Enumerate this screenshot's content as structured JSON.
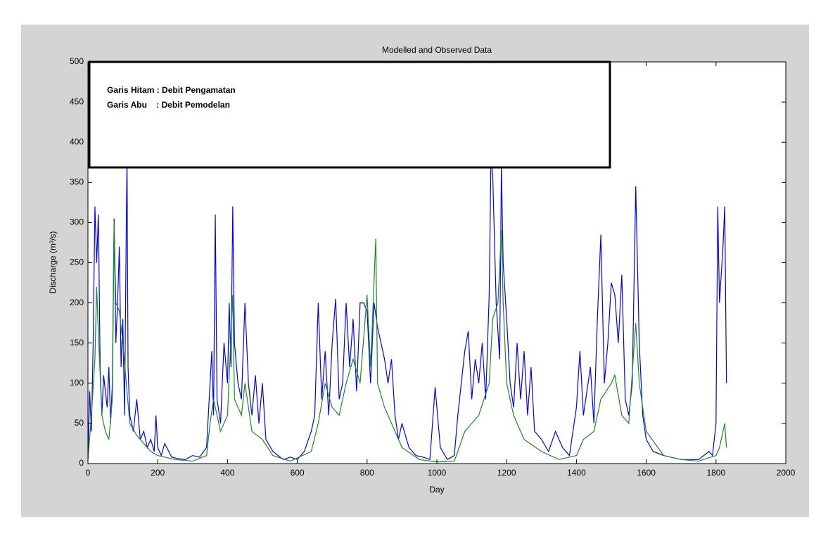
{
  "chart_data": {
    "type": "line",
    "title": "Modelled and Observed Data",
    "x_label": "Day",
    "y_label": "Discharge (m³/s)",
    "annotations": [
      "Garis Hitam : Debit Pengamatan",
      "Garis Abu    : Debit Pemodelan"
    ],
    "xlim": [
      0,
      2000
    ],
    "xticks": [
      0,
      200,
      400,
      600,
      800,
      1000,
      1200,
      1400,
      1600,
      1800,
      2000
    ],
    "ylim": [
      0,
      500
    ],
    "yticks": [
      0,
      50,
      100,
      150,
      200,
      250,
      300,
      350,
      400,
      450,
      500
    ],
    "series": [
      {
        "color": "#0000ff",
        "x": [
          0,
          5,
          10,
          15,
          20,
          25,
          30,
          35,
          40,
          45,
          50,
          55,
          60,
          65,
          70,
          75,
          80,
          85,
          90,
          95,
          100,
          105,
          110,
          112,
          115,
          120,
          130,
          140,
          150,
          160,
          170,
          180,
          190,
          195,
          200,
          210,
          220,
          240,
          260,
          280,
          300,
          320,
          340,
          350,
          355,
          360,
          365,
          370,
          380,
          390,
          400,
          405,
          410,
          415,
          420,
          430,
          440,
          450,
          460,
          470,
          480,
          490,
          500,
          510,
          530,
          560,
          580,
          600,
          620,
          640,
          650,
          660,
          670,
          680,
          690,
          700,
          710,
          720,
          730,
          740,
          750,
          760,
          770,
          780,
          790,
          800,
          810,
          820,
          830,
          840,
          850,
          860,
          870,
          880,
          890,
          900,
          920,
          940,
          960,
          980,
          995,
          1000,
          1010,
          1030,
          1050,
          1060,
          1070,
          1080,
          1090,
          1100,
          1110,
          1120,
          1130,
          1140,
          1150,
          1155,
          1160,
          1170,
          1180,
          1185,
          1190,
          1200,
          1210,
          1220,
          1230,
          1240,
          1250,
          1260,
          1270,
          1280,
          1300,
          1320,
          1340,
          1360,
          1380,
          1400,
          1410,
          1420,
          1440,
          1450,
          1460,
          1470,
          1480,
          1490,
          1500,
          1510,
          1520,
          1530,
          1540,
          1550,
          1560,
          1570,
          1580,
          1590,
          1600,
          1620,
          1650,
          1700,
          1750,
          1780,
          1790,
          1800,
          1805,
          1810,
          1820,
          1825,
          1830
        ],
        "values": [
          5,
          90,
          40,
          150,
          320,
          250,
          310,
          120,
          60,
          110,
          90,
          70,
          120,
          50,
          100,
          305,
          150,
          200,
          270,
          120,
          180,
          60,
          300,
          380,
          120,
          60,
          40,
          80,
          30,
          40,
          20,
          30,
          15,
          60,
          20,
          10,
          25,
          8,
          6,
          5,
          10,
          8,
          20,
          100,
          140,
          60,
          310,
          80,
          50,
          150,
          100,
          200,
          120,
          320,
          150,
          100,
          80,
          200,
          100,
          60,
          110,
          50,
          100,
          30,
          15,
          5,
          8,
          5,
          15,
          40,
          60,
          200,
          80,
          140,
          60,
          150,
          205,
          80,
          100,
          200,
          120,
          180,
          90,
          200,
          200,
          190,
          100,
          200,
          170,
          150,
          130,
          100,
          130,
          60,
          30,
          50,
          20,
          10,
          8,
          5,
          95,
          70,
          20,
          5,
          10,
          60,
          100,
          140,
          165,
          80,
          130,
          100,
          150,
          80,
          210,
          380,
          360,
          200,
          130,
          370,
          250,
          180,
          100,
          70,
          150,
          80,
          140,
          60,
          120,
          40,
          30,
          15,
          40,
          20,
          10,
          70,
          140,
          60,
          120,
          50,
          180,
          285,
          100,
          150,
          225,
          210,
          150,
          235,
          80,
          60,
          100,
          345,
          150,
          60,
          30,
          15,
          10,
          5,
          5,
          15,
          10,
          50,
          320,
          200,
          270,
          320,
          100
        ]
      },
      {
        "color": "#1a8c1a",
        "x": [
          0,
          10,
          20,
          25,
          30,
          40,
          50,
          60,
          70,
          75,
          80,
          90,
          100,
          110,
          120,
          140,
          160,
          180,
          200,
          250,
          300,
          340,
          350,
          360,
          370,
          380,
          400,
          415,
          420,
          440,
          450,
          470,
          500,
          530,
          580,
          640,
          660,
          680,
          700,
          720,
          740,
          760,
          780,
          800,
          810,
          825,
          830,
          850,
          870,
          900,
          950,
          1000,
          1050,
          1060,
          1080,
          1100,
          1120,
          1150,
          1160,
          1175,
          1185,
          1190,
          1200,
          1220,
          1250,
          1300,
          1350,
          1400,
          1420,
          1450,
          1470,
          1500,
          1510,
          1530,
          1550,
          1570,
          1580,
          1600,
          1650,
          1700,
          1750,
          1800,
          1810,
          1825,
          1830
        ],
        "values": [
          5,
          60,
          130,
          220,
          160,
          60,
          40,
          30,
          80,
          300,
          200,
          190,
          150,
          100,
          50,
          35,
          25,
          15,
          10,
          5,
          3,
          10,
          50,
          80,
          60,
          40,
          60,
          210,
          80,
          60,
          100,
          40,
          30,
          10,
          3,
          15,
          50,
          100,
          70,
          60,
          100,
          130,
          100,
          210,
          120,
          280,
          100,
          70,
          50,
          20,
          5,
          2,
          3,
          15,
          40,
          50,
          60,
          100,
          180,
          200,
          290,
          200,
          100,
          60,
          30,
          15,
          5,
          10,
          30,
          40,
          80,
          100,
          110,
          60,
          50,
          175,
          100,
          40,
          10,
          5,
          3,
          10,
          20,
          50,
          20
        ]
      }
    ]
  }
}
